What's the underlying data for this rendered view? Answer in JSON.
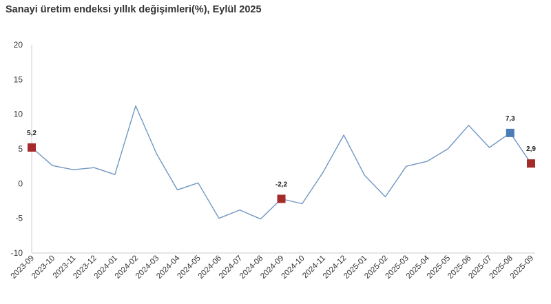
{
  "chart_data": {
    "type": "line",
    "title": "Sanayi üretim endeksi yıllık değişimleri(%), Eylül 2025",
    "xlabel": "",
    "ylabel": "",
    "ylim": [
      -10,
      20
    ],
    "yticks": [
      -10,
      -5,
      0,
      5,
      10,
      15,
      20
    ],
    "grid": false,
    "legend": "none",
    "categories": [
      "2023-09",
      "2023-10",
      "2023-11",
      "2023-12",
      "2024-01",
      "2024-02",
      "2024-03",
      "2024-04",
      "2024-05",
      "2024-06",
      "2024-07",
      "2024-08",
      "2024-09",
      "2024-10",
      "2024-11",
      "2024-12",
      "2025-01",
      "2025-02",
      "2025-03",
      "2025-04",
      "2025-05",
      "2025-06",
      "2025-07",
      "2025-08",
      "2025-09"
    ],
    "series": [
      {
        "values": [
          5.2,
          2.6,
          2.0,
          2.3,
          1.3,
          11.2,
          4.3,
          -0.9,
          0.1,
          -5.0,
          -3.8,
          -5.1,
          -2.2,
          -2.9,
          1.6,
          7.0,
          1.2,
          -1.9,
          2.5,
          3.2,
          5.0,
          8.4,
          5.2,
          7.3,
          2.9
        ],
        "color": "#6f96c2"
      }
    ],
    "annotations": [
      {
        "index": 0,
        "label": "5,2",
        "color": "#a52a2a"
      },
      {
        "index": 12,
        "label": "-2,2",
        "color": "#a52a2a"
      },
      {
        "index": 23,
        "label": "7,3",
        "color": "#4a7cb5"
      },
      {
        "index": 24,
        "label": "2,9",
        "color": "#a52a2a"
      }
    ]
  }
}
